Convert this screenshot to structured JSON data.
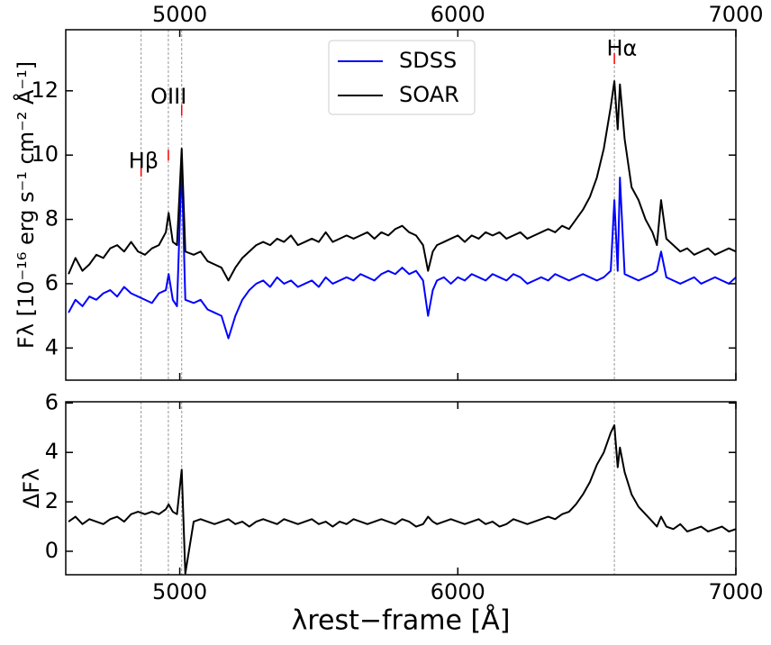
{
  "chart_data": [
    {
      "type": "line",
      "ylabel": "Fλ [10⁻¹⁶ erg s⁻¹ cm⁻² Å⁻¹]",
      "x": [
        4600,
        4625,
        4650,
        4675,
        4700,
        4725,
        4750,
        4775,
        4800,
        4825,
        4850,
        4875,
        4900,
        4925,
        4950,
        4960,
        4975,
        4990,
        5007,
        5020,
        5050,
        5075,
        5100,
        5125,
        5150,
        5175,
        5200,
        5225,
        5250,
        5275,
        5300,
        5325,
        5350,
        5375,
        5400,
        5425,
        5450,
        5475,
        5500,
        5525,
        5550,
        5575,
        5600,
        5625,
        5650,
        5675,
        5700,
        5725,
        5750,
        5775,
        5800,
        5825,
        5850,
        5875,
        5893,
        5910,
        5925,
        5950,
        5975,
        6000,
        6025,
        6050,
        6075,
        6100,
        6125,
        6150,
        6175,
        6200,
        6225,
        6250,
        6275,
        6300,
        6325,
        6350,
        6375,
        6400,
        6425,
        6450,
        6475,
        6500,
        6525,
        6550,
        6563,
        6575,
        6583,
        6600,
        6625,
        6650,
        6675,
        6700,
        6716,
        6731,
        6750,
        6775,
        6800,
        6825,
        6850,
        6875,
        6900,
        6925,
        6950,
        6975,
        7000
      ],
      "series": [
        {
          "name": "SDSS",
          "color": "#0000ff",
          "values": [
            5.1,
            5.5,
            5.3,
            5.6,
            5.5,
            5.7,
            5.8,
            5.6,
            5.9,
            5.7,
            5.6,
            5.5,
            5.4,
            5.7,
            5.8,
            6.3,
            5.5,
            5.3,
            9.7,
            5.5,
            5.4,
            5.5,
            5.2,
            5.1,
            5.0,
            4.3,
            5.0,
            5.5,
            5.8,
            6.0,
            6.1,
            5.9,
            6.2,
            6.0,
            6.1,
            5.9,
            6.0,
            6.1,
            5.9,
            6.2,
            6.0,
            6.1,
            6.2,
            6.1,
            6.3,
            6.2,
            6.1,
            6.3,
            6.4,
            6.3,
            6.5,
            6.3,
            6.4,
            6.1,
            5.0,
            5.8,
            6.1,
            6.2,
            6.0,
            6.2,
            6.1,
            6.3,
            6.2,
            6.1,
            6.3,
            6.2,
            6.1,
            6.3,
            6.2,
            6.0,
            6.1,
            6.2,
            6.1,
            6.3,
            6.2,
            6.1,
            6.2,
            6.3,
            6.2,
            6.1,
            6.2,
            6.4,
            8.6,
            6.4,
            9.3,
            6.3,
            6.2,
            6.1,
            6.2,
            6.3,
            6.4,
            7.0,
            6.2,
            6.1,
            6.0,
            6.1,
            6.2,
            6.0,
            6.1,
            6.2,
            6.1,
            6.0,
            6.2
          ]
        },
        {
          "name": "SOAR",
          "color": "#000000",
          "values": [
            6.3,
            6.8,
            6.4,
            6.6,
            6.9,
            6.8,
            7.1,
            7.2,
            7.0,
            7.3,
            7.0,
            6.9,
            7.1,
            7.2,
            7.6,
            8.2,
            7.3,
            7.2,
            10.2,
            7.0,
            6.9,
            7.0,
            6.7,
            6.6,
            6.5,
            6.1,
            6.5,
            6.8,
            7.0,
            7.2,
            7.3,
            7.2,
            7.4,
            7.3,
            7.5,
            7.2,
            7.3,
            7.4,
            7.3,
            7.6,
            7.3,
            7.4,
            7.5,
            7.4,
            7.5,
            7.6,
            7.4,
            7.6,
            7.5,
            7.7,
            7.8,
            7.6,
            7.5,
            7.2,
            6.4,
            7.0,
            7.2,
            7.3,
            7.4,
            7.5,
            7.3,
            7.5,
            7.4,
            7.6,
            7.5,
            7.6,
            7.4,
            7.5,
            7.6,
            7.4,
            7.5,
            7.6,
            7.7,
            7.6,
            7.8,
            7.7,
            8.0,
            8.3,
            8.7,
            9.3,
            10.2,
            11.5,
            12.3,
            10.8,
            12.2,
            10.5,
            9.0,
            8.6,
            8.0,
            7.6,
            7.2,
            8.6,
            7.4,
            7.2,
            7.0,
            7.1,
            6.9,
            7.0,
            7.1,
            6.9,
            7.0,
            7.1,
            7.0
          ]
        }
      ],
      "xlim": [
        4590,
        7000
      ],
      "xticks": [
        5000,
        6000,
        7000
      ],
      "xtick_labels": "top",
      "ylim": [
        3.0,
        13.9
      ],
      "yticks": [
        4,
        6,
        8,
        10,
        12
      ],
      "vlines": [
        4861,
        4959,
        5007,
        6563
      ],
      "line_markers": {
        "color": "#ff0000",
        "x": [
          4861,
          4959,
          5007,
          6563
        ],
        "y": [
          9.5,
          10.0,
          11.4,
          13.0
        ]
      },
      "annotations": [
        {
          "text": "Hβ",
          "x": 4870,
          "y": 9.8
        },
        {
          "text": "OIII",
          "x": 4960,
          "y": 11.8
        },
        {
          "text": "Hα",
          "x": 6590,
          "y": 13.3
        }
      ],
      "legend": "upper center"
    },
    {
      "type": "line",
      "ylabel": "ΔFλ",
      "xlabel": "λrest−frame [Å]",
      "x": [
        4600,
        4625,
        4650,
        4675,
        4700,
        4725,
        4750,
        4775,
        4800,
        4825,
        4850,
        4875,
        4900,
        4925,
        4950,
        4960,
        4975,
        4990,
        5007,
        5020,
        5050,
        5075,
        5100,
        5125,
        5150,
        5175,
        5200,
        5225,
        5250,
        5275,
        5300,
        5325,
        5350,
        5375,
        5400,
        5425,
        5450,
        5475,
        5500,
        5525,
        5550,
        5575,
        5600,
        5625,
        5650,
        5675,
        5700,
        5725,
        5750,
        5775,
        5800,
        5825,
        5850,
        5875,
        5893,
        5910,
        5925,
        5950,
        5975,
        6000,
        6025,
        6050,
        6075,
        6100,
        6125,
        6150,
        6175,
        6200,
        6225,
        6250,
        6275,
        6300,
        6325,
        6350,
        6375,
        6400,
        6425,
        6450,
        6475,
        6500,
        6525,
        6550,
        6563,
        6575,
        6583,
        6600,
        6625,
        6650,
        6675,
        6700,
        6716,
        6731,
        6750,
        6775,
        6800,
        6825,
        6850,
        6875,
        6900,
        6925,
        6950,
        6975,
        7000
      ],
      "series": [
        {
          "color": "#000000",
          "values": [
            1.2,
            1.4,
            1.1,
            1.3,
            1.2,
            1.1,
            1.3,
            1.4,
            1.2,
            1.5,
            1.6,
            1.5,
            1.6,
            1.5,
            1.7,
            1.9,
            1.6,
            1.5,
            3.3,
            -0.9,
            1.2,
            1.3,
            1.2,
            1.1,
            1.2,
            1.3,
            1.1,
            1.2,
            1.0,
            1.2,
            1.3,
            1.2,
            1.1,
            1.3,
            1.2,
            1.1,
            1.2,
            1.3,
            1.1,
            1.2,
            1.0,
            1.2,
            1.1,
            1.3,
            1.2,
            1.1,
            1.2,
            1.3,
            1.2,
            1.1,
            1.3,
            1.2,
            1.0,
            1.1,
            1.4,
            1.2,
            1.1,
            1.2,
            1.3,
            1.2,
            1.1,
            1.2,
            1.3,
            1.1,
            1.2,
            1.0,
            1.1,
            1.3,
            1.2,
            1.1,
            1.2,
            1.3,
            1.4,
            1.3,
            1.5,
            1.6,
            1.9,
            2.3,
            2.8,
            3.5,
            4.0,
            4.8,
            5.1,
            3.4,
            4.2,
            3.2,
            2.3,
            1.8,
            1.5,
            1.2,
            1.0,
            1.4,
            1.0,
            0.9,
            1.1,
            0.8,
            0.9,
            1.0,
            0.8,
            0.9,
            1.0,
            0.8,
            0.9
          ]
        }
      ],
      "xlim": [
        4590,
        7000
      ],
      "xticks": [
        5000,
        6000,
        7000
      ],
      "xtick_labels": "bottom",
      "ylim": [
        -0.95,
        6.05
      ],
      "yticks": [
        0,
        2,
        4,
        6
      ],
      "vlines": [
        4861,
        4959,
        5007,
        6563
      ]
    }
  ]
}
